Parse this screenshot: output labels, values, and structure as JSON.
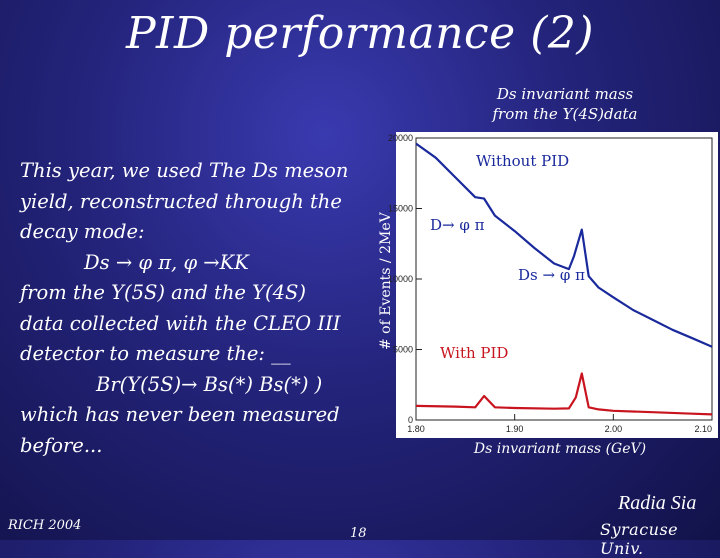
{
  "slide": {
    "title": "PID performance (2)",
    "top_caption_line1": "Ds invariant mass",
    "top_caption_line2": "from the Y(4S)data",
    "body": {
      "l1": "This year, we used The Ds meson",
      "l2": "yield, reconstructed through the",
      "l3": "decay mode:",
      "l4": "Ds → φ π,  φ →KK",
      "l5": " from the Y(5S) and the Y(4S)",
      "l6": "data collected with the CLEO III",
      "l7": "detector to measure the: __",
      "l8": "Br(Y(5S)→ Bs(*) Bs(*) )",
      "l9": "which has never been measured",
      "l10": "before..."
    },
    "footer_left": "RICH 2004",
    "page_number": "18",
    "author": "Radia Sia",
    "affiliation": "Syracuse Univ."
  },
  "chart_data": {
    "type": "line",
    "ylabel": "# of Events / 2MeV",
    "xlabel": "Ds invariant mass (GeV)",
    "xlim": [
      1.8,
      2.1
    ],
    "ylim": [
      0,
      20000
    ],
    "x_ticks": [
      "1.80",
      "1.90",
      "2.00",
      "2.10"
    ],
    "y_ticks": [
      "0",
      "5000",
      "10000",
      "15000",
      "20000"
    ],
    "annotations": {
      "without_pid": "Without PID",
      "d_peak": "D→ φ π",
      "ds_peak": "Ds → φ π",
      "with_pid": "With PID"
    },
    "series": [
      {
        "name": "Without PID",
        "color": "#1a2a9c",
        "x": [
          1.8,
          1.82,
          1.84,
          1.86,
          1.869,
          1.88,
          1.9,
          1.92,
          1.94,
          1.955,
          1.96,
          1.968,
          1.975,
          1.985,
          2.0,
          2.02,
          2.04,
          2.06,
          2.08,
          2.1
        ],
        "y": [
          19600,
          18600,
          17200,
          15800,
          15700,
          14500,
          13400,
          12200,
          11100,
          10700,
          11600,
          13500,
          10200,
          9400,
          8700,
          7800,
          7100,
          6400,
          5800,
          5200
        ]
      },
      {
        "name": "With PID",
        "color": "#c8141e",
        "x": [
          1.8,
          1.84,
          1.86,
          1.869,
          1.88,
          1.9,
          1.94,
          1.955,
          1.962,
          1.968,
          1.975,
          1.985,
          2.0,
          2.04,
          2.08,
          2.1
        ],
        "y": [
          1000,
          950,
          900,
          1700,
          900,
          850,
          800,
          820,
          1600,
          3300,
          900,
          750,
          650,
          550,
          450,
          400
        ]
      }
    ]
  }
}
